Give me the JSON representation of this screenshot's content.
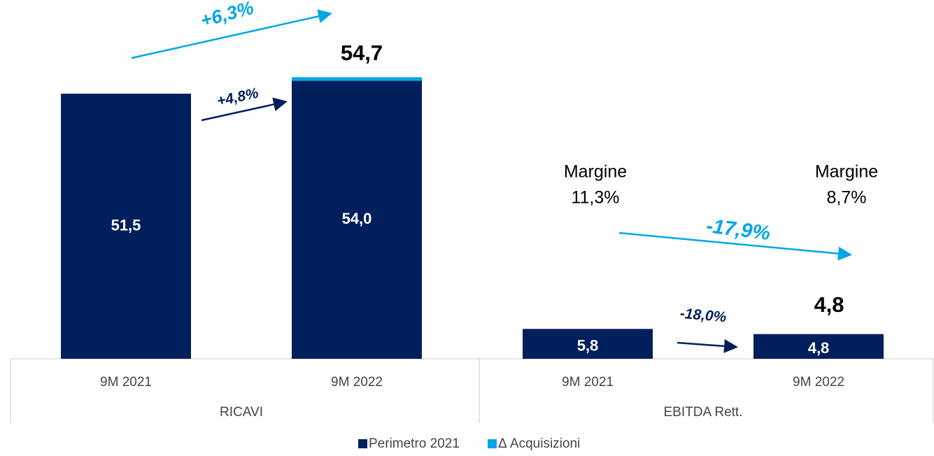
{
  "chart_data": {
    "type": "stacked-bar",
    "categories": [
      "9M 2021",
      "9M 2022",
      "9M 2021",
      "9M 2022"
    ],
    "groups": [
      "RICAVI",
      "EBITDA Rett."
    ],
    "series": [
      {
        "name": "Perimetro 2021",
        "color": "#001f5c",
        "values": [
          51.5,
          54.0,
          5.8,
          4.8
        ],
        "value_labels": [
          "51,5",
          "54,0",
          "5,8",
          "4,8"
        ]
      },
      {
        "name": "Δ Acquisizioni",
        "color": "#00a6e6",
        "values": [
          0,
          0.7,
          0,
          0
        ]
      }
    ],
    "ylim": [
      0,
      69.7
    ],
    "totals": [
      "54,7",
      "4,8"
    ],
    "growth": [
      "+6,3%",
      "+4,8%",
      "-17,9%",
      "-18,0%"
    ],
    "margins": [
      [
        "Margine",
        "11,3%"
      ],
      [
        "Margine",
        "8,7%"
      ]
    ]
  }
}
